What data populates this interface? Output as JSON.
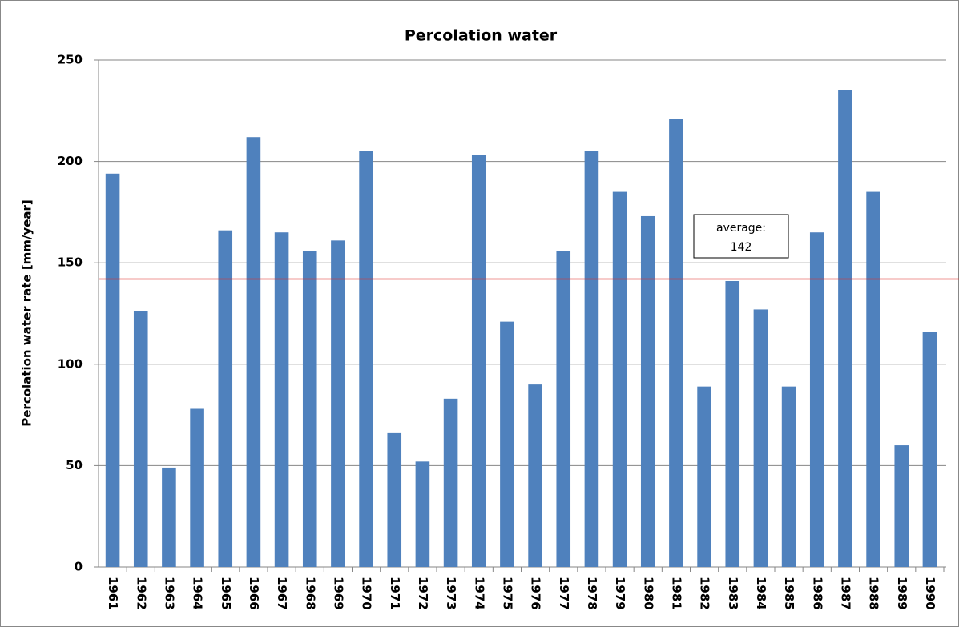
{
  "chart_data": {
    "type": "bar",
    "title": "Percolation water",
    "y_label": "Percolation water rate [mm/year]",
    "categories": [
      "1961",
      "1962",
      "1963",
      "1964",
      "1965",
      "1966",
      "1967",
      "1968",
      "1969",
      "1970",
      "1971",
      "1972",
      "1973",
      "1974",
      "1975",
      "1976",
      "1977",
      "1978",
      "1979",
      "1980",
      "1981",
      "1982",
      "1983",
      "1984",
      "1985",
      "1986",
      "1987",
      "1988",
      "1989",
      "1990"
    ],
    "values": [
      194,
      126,
      49,
      78,
      166,
      212,
      165,
      156,
      161,
      205,
      66,
      52,
      83,
      203,
      121,
      90,
      156,
      205,
      185,
      173,
      221,
      89,
      141,
      127,
      89,
      165,
      235,
      185,
      60,
      116
    ],
    "color": "#4f81bd",
    "ylim": [
      0,
      250
    ],
    "yticks": [
      0,
      50,
      100,
      150,
      200,
      250
    ],
    "grid": true,
    "average": {
      "label": "average:",
      "value": 142,
      "color": "#e0312b"
    }
  }
}
